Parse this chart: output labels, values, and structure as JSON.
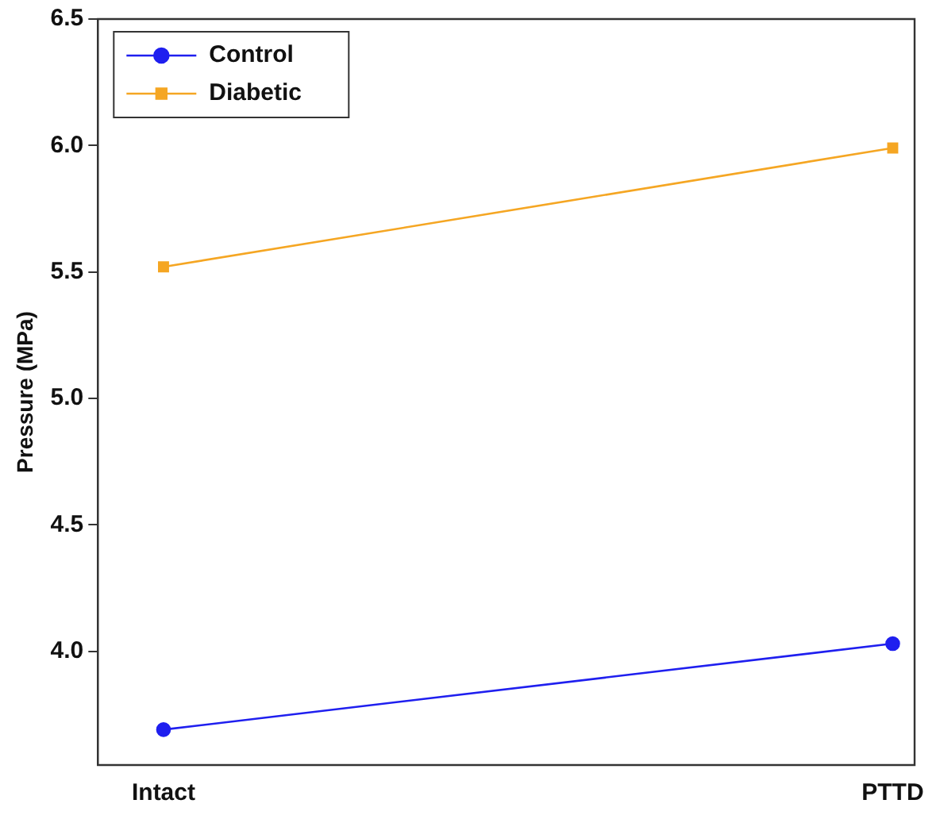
{
  "chart_data": {
    "type": "line",
    "ylabel": "Pressure (MPa)",
    "categories": [
      "Intact",
      "PTTD"
    ],
    "series": [
      {
        "name": "Control",
        "color": "#1f1fef",
        "marker": "circle",
        "values": [
          3.69,
          4.03
        ]
      },
      {
        "name": "Diabetic",
        "color": "#f5a623",
        "marker": "square",
        "values": [
          5.52,
          5.99
        ]
      }
    ],
    "ylim": [
      3.55,
      6.5
    ],
    "yticks": [
      {
        "value": 4,
        "label": "4.0"
      },
      4.5,
      {
        "value": 5,
        "label": "5.0"
      },
      5.5,
      {
        "value": 6,
        "label": "6.0"
      },
      6.5
    ],
    "grid": false,
    "legend": "top left"
  }
}
